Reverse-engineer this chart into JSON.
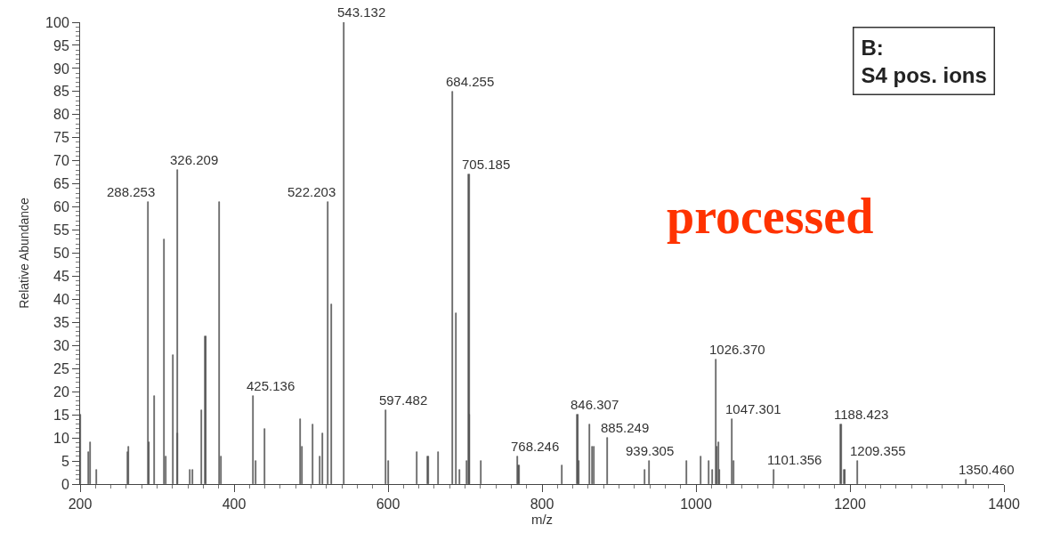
{
  "chart_data": {
    "type": "bar",
    "xlabel": "m/z",
    "ylabel": "Relative Abundance",
    "x": [
      201,
      211,
      213,
      221,
      262,
      263,
      288.253,
      290,
      297,
      309,
      312,
      321,
      326.209,
      327,
      343,
      346,
      358,
      363,
      381,
      383,
      425.136,
      428,
      440,
      486,
      488,
      502,
      512,
      515,
      522.203,
      527,
      543.132,
      597.482,
      601,
      638,
      652,
      665,
      684.255,
      688,
      693,
      702,
      705.185,
      706,
      721,
      768.246,
      770,
      826,
      846.307,
      848,
      862,
      865,
      868,
      885.249,
      934,
      939.305,
      988,
      1006,
      1017,
      1021,
      1026.37,
      1027,
      1029,
      1031,
      1047.301,
      1049,
      1101.356,
      1188.423,
      1193,
      1209.355,
      1350.46
    ],
    "values": [
      15,
      7,
      9,
      3,
      7,
      8,
      61,
      9,
      19,
      53,
      6,
      28,
      68,
      11,
      3,
      3,
      16,
      32,
      61,
      6,
      19,
      5,
      12,
      14,
      8,
      13,
      6,
      11,
      61,
      39,
      100,
      16,
      5,
      7,
      6,
      7,
      85,
      37,
      3,
      5,
      67,
      15,
      5,
      6,
      4,
      4,
      15,
      5,
      13,
      8,
      8,
      10,
      3,
      5,
      5,
      6,
      5,
      3,
      27,
      8,
      9,
      3,
      14,
      5,
      3,
      13,
      3,
      5,
      1
    ],
    "color": "#555555",
    "xlim": [
      200,
      1400
    ],
    "xticks": [
      200,
      400,
      600,
      800,
      1000,
      1200,
      1400
    ],
    "ylim": [
      0,
      100
    ],
    "yticks": [
      0,
      5,
      10,
      15,
      20,
      25,
      30,
      35,
      40,
      45,
      50,
      55,
      60,
      65,
      70,
      75,
      80,
      85,
      90,
      95,
      100
    ],
    "annotations": [
      "B:\nS4 pos. ions",
      "processed",
      {
        "text": "288.253",
        "x": 288.253,
        "y": 61
      },
      {
        "text": "326.209",
        "x": 326.209,
        "y": 68
      },
      {
        "text": "425.136",
        "x": 425.136,
        "y": 19
      },
      {
        "text": "522.203",
        "x": 522.203,
        "y": 61
      },
      {
        "text": "543.132",
        "x": 543.132,
        "y": 100
      },
      {
        "text": "597.482",
        "x": 597.482,
        "y": 16
      },
      {
        "text": "684.255",
        "x": 684.255,
        "y": 85
      },
      {
        "text": "705.185",
        "x": 705.185,
        "y": 67
      },
      {
        "text": "768.246",
        "x": 768.246,
        "y": 6
      },
      {
        "text": "846.307",
        "x": 846.307,
        "y": 15
      },
      {
        "text": "885.249",
        "x": 885.249,
        "y": 10
      },
      {
        "text": "939.305",
        "x": 939.305,
        "y": 5
      },
      {
        "text": "1026.370",
        "x": 1026.37,
        "y": 27
      },
      {
        "text": "1047.301",
        "x": 1047.301,
        "y": 14
      },
      {
        "text": "1101.356",
        "x": 1101.356,
        "y": 3
      },
      {
        "text": "1188.423",
        "x": 1188.423,
        "y": 13
      },
      {
        "text": "1209.355",
        "x": 1209.355,
        "y": 5
      },
      {
        "text": "1350.460",
        "x": 1350.46,
        "y": 1
      }
    ]
  }
}
